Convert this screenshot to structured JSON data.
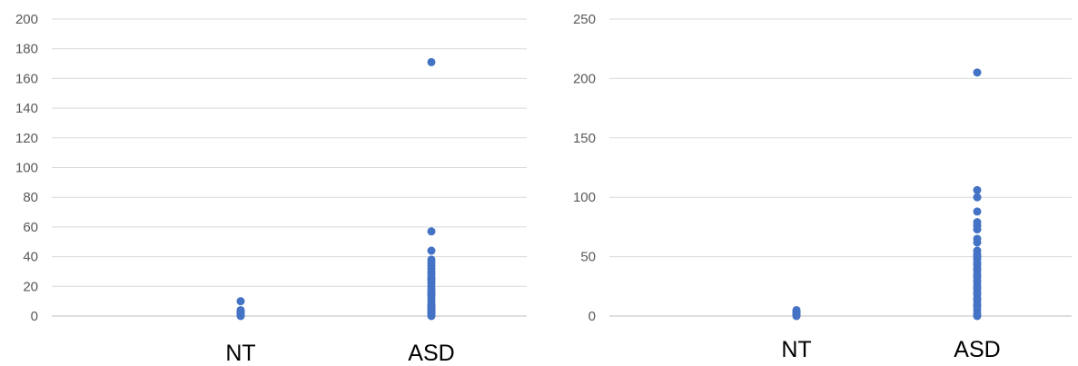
{
  "colors": {
    "point": "#4472C4",
    "grid": "#D9D9D9",
    "axis": "#BFBFBF",
    "tick_text": "#595959",
    "category_text": "#000000"
  },
  "chart_data": [
    {
      "type": "scatter",
      "title": "",
      "xlabel": "",
      "ylabel": "",
      "categories": [
        "NT",
        "ASD"
      ],
      "ylim": [
        0,
        200
      ],
      "yticks": [
        0,
        20,
        40,
        60,
        80,
        100,
        120,
        140,
        160,
        180,
        200
      ],
      "grid": true,
      "legend": "none",
      "series": [
        {
          "category": "NT",
          "values": [
            0,
            1,
            2,
            3,
            4,
            10
          ]
        },
        {
          "category": "ASD",
          "values": [
            0,
            1,
            2,
            3,
            4,
            5,
            6,
            7,
            8,
            10,
            12,
            14,
            15,
            16,
            18,
            20,
            22,
            24,
            25,
            26,
            28,
            30,
            32,
            34,
            36,
            38,
            44,
            57,
            171
          ]
        }
      ]
    },
    {
      "type": "scatter",
      "title": "",
      "xlabel": "",
      "ylabel": "",
      "categories": [
        "NT",
        "ASD"
      ],
      "ylim": [
        0,
        250
      ],
      "yticks": [
        0,
        50,
        100,
        150,
        200,
        250
      ],
      "grid": true,
      "legend": "none",
      "series": [
        {
          "category": "NT",
          "values": [
            0,
            1,
            2,
            3,
            4,
            5
          ]
        },
        {
          "category": "ASD",
          "values": [
            0,
            2,
            5,
            8,
            10,
            13,
            15,
            18,
            20,
            23,
            25,
            28,
            30,
            33,
            35,
            38,
            40,
            43,
            45,
            48,
            50,
            52,
            55,
            62,
            65,
            73,
            76,
            79,
            88,
            100,
            106,
            205
          ]
        }
      ]
    }
  ]
}
